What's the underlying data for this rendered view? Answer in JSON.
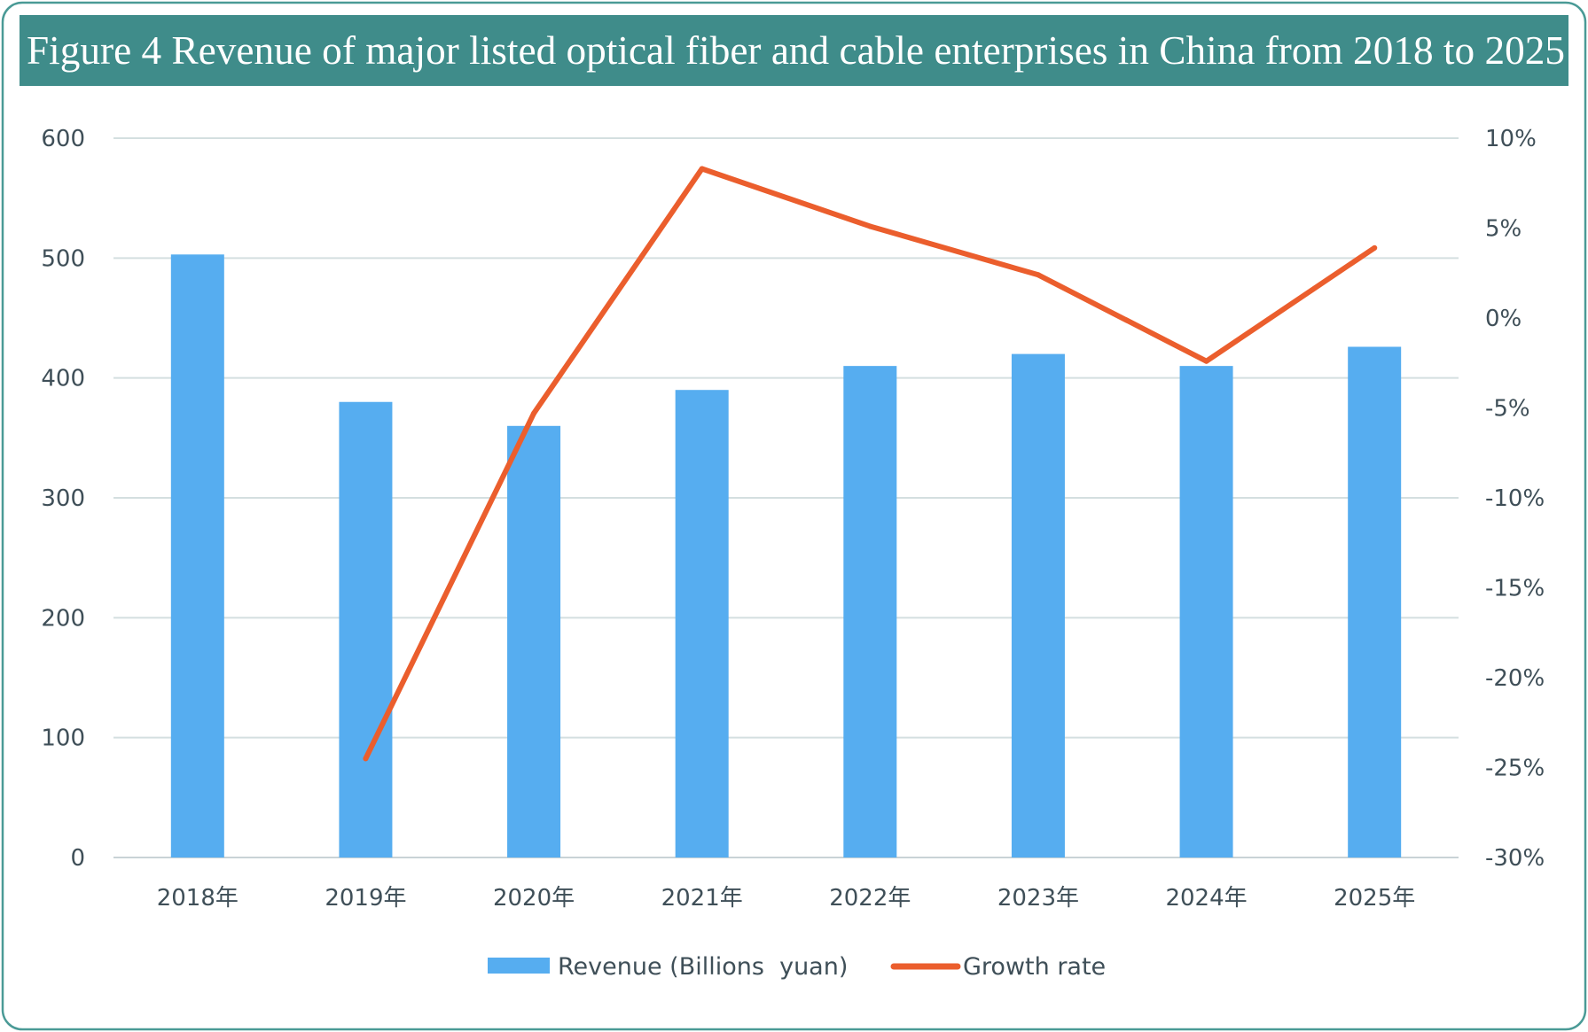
{
  "chart_data": {
    "type": "bar",
    "title": "Figure 4 Revenue of major listed optical fiber and cable enterprises in China from 2018 to 2025",
    "categories": [
      "2018年",
      "2019年",
      "2020年",
      "2021年",
      "2022年",
      "2023年",
      "2024年",
      "2025年"
    ],
    "series": [
      {
        "name": "Revenue (Billions  yuan)",
        "type": "bar",
        "axis": "left",
        "color": "#56adf0",
        "values": [
          503,
          380,
          360,
          390,
          410,
          420,
          410,
          426
        ]
      },
      {
        "name": "Growth rate",
        "type": "line",
        "axis": "right",
        "color": "#eb5e2d",
        "values": [
          null,
          -24.5,
          -5.3,
          8.3,
          5.1,
          2.4,
          -2.4,
          3.9
        ]
      }
    ],
    "y_left": {
      "range": [
        0,
        600
      ],
      "ticks": [
        "0",
        "100",
        "200",
        "300",
        "400",
        "500",
        "600"
      ]
    },
    "y_right": {
      "range": [
        -30,
        10
      ],
      "ticks": [
        "-30%",
        "-25%",
        "-20%",
        "-15%",
        "-10%",
        "-5%",
        "0%",
        "5%",
        "10%"
      ]
    },
    "grid": true,
    "legend_position": "bottom",
    "title_bar_color": "#3f8c8a",
    "frame_color": "#4a9a96"
  }
}
